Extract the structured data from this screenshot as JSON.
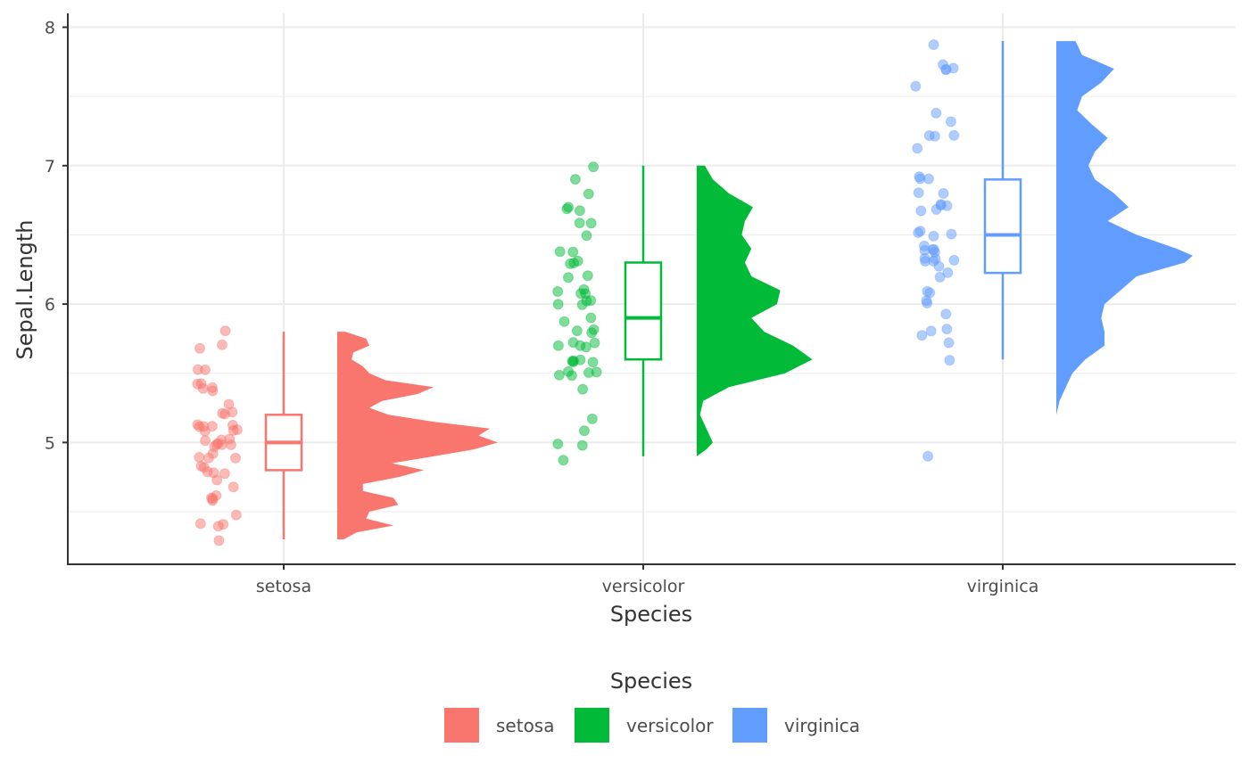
{
  "chart_data": {
    "type": "raincloud",
    "xlabel": "Species",
    "ylabel": "Sepal.Length",
    "categories": [
      "setosa",
      "versicolor",
      "virginica"
    ],
    "y_ticks": [
      "5",
      "6",
      "7",
      "8"
    ],
    "ylim": [
      4.12,
      8.1
    ],
    "grid": true,
    "legend": {
      "title": "Species",
      "position": "bottom",
      "entries": [
        "setosa",
        "versicolor",
        "virginica"
      ]
    },
    "colors": {
      "setosa": "#F8766D",
      "versicolor": "#00BA38",
      "virginica": "#619CFF"
    },
    "series": [
      {
        "name": "setosa",
        "points": [
          5.1,
          4.9,
          4.7,
          4.6,
          5.0,
          5.4,
          4.6,
          5.0,
          4.4,
          4.9,
          5.4,
          4.8,
          4.8,
          4.3,
          5.8,
          5.7,
          5.4,
          5.1,
          5.7,
          5.1,
          5.4,
          5.1,
          4.6,
          5.1,
          4.8,
          5.0,
          5.0,
          5.2,
          5.2,
          4.7,
          4.8,
          5.4,
          5.2,
          5.5,
          4.9,
          5.0,
          5.5,
          4.9,
          4.4,
          5.1,
          5.0,
          4.5,
          4.4,
          5.0,
          5.1,
          4.8,
          5.1,
          4.6,
          5.3,
          5.0
        ],
        "box": {
          "min": 4.3,
          "q1": 4.8,
          "median": 5.0,
          "q3": 5.2,
          "max": 5.8
        },
        "density": [
          [
            4.3,
            0.04
          ],
          [
            4.35,
            0.12
          ],
          [
            4.4,
            0.35
          ],
          [
            4.45,
            0.18
          ],
          [
            4.5,
            0.2
          ],
          [
            4.55,
            0.38
          ],
          [
            4.6,
            0.35
          ],
          [
            4.65,
            0.16
          ],
          [
            4.7,
            0.16
          ],
          [
            4.75,
            0.38
          ],
          [
            4.8,
            0.54
          ],
          [
            4.85,
            0.34
          ],
          [
            4.9,
            0.6
          ],
          [
            4.95,
            0.85
          ],
          [
            5.0,
            1.0
          ],
          [
            5.05,
            0.88
          ],
          [
            5.1,
            0.95
          ],
          [
            5.15,
            0.6
          ],
          [
            5.2,
            0.32
          ],
          [
            5.25,
            0.2
          ],
          [
            5.3,
            0.28
          ],
          [
            5.35,
            0.5
          ],
          [
            5.4,
            0.6
          ],
          [
            5.45,
            0.3
          ],
          [
            5.5,
            0.2
          ],
          [
            5.55,
            0.16
          ],
          [
            5.6,
            0.09
          ],
          [
            5.65,
            0.1
          ],
          [
            5.7,
            0.2
          ],
          [
            5.75,
            0.18
          ],
          [
            5.8,
            0.05
          ]
        ]
      },
      {
        "name": "versicolor",
        "points": [
          7.0,
          6.4,
          6.9,
          5.5,
          6.5,
          5.7,
          6.3,
          4.9,
          6.6,
          5.2,
          5.0,
          5.9,
          6.0,
          6.1,
          5.6,
          6.7,
          5.6,
          5.8,
          6.2,
          5.6,
          5.9,
          6.1,
          6.3,
          6.1,
          6.4,
          6.6,
          6.8,
          6.7,
          6.0,
          5.7,
          5.5,
          5.5,
          5.8,
          6.0,
          5.4,
          6.0,
          6.7,
          6.3,
          5.6,
          5.5,
          5.5,
          6.1,
          5.8,
          5.0,
          5.6,
          5.7,
          5.7,
          6.2,
          5.1,
          5.7
        ],
        "box": {
          "min": 4.9,
          "q1": 5.6,
          "median": 5.9,
          "q3": 6.3,
          "max": 7.0
        },
        "density": [
          [
            4.9,
            0.0
          ],
          [
            4.95,
            0.06
          ],
          [
            5.0,
            0.1
          ],
          [
            5.1,
            0.06
          ],
          [
            5.2,
            0.02
          ],
          [
            5.3,
            0.04
          ],
          [
            5.4,
            0.2
          ],
          [
            5.5,
            0.55
          ],
          [
            5.6,
            0.72
          ],
          [
            5.7,
            0.6
          ],
          [
            5.8,
            0.42
          ],
          [
            5.9,
            0.34
          ],
          [
            6.0,
            0.5
          ],
          [
            6.1,
            0.52
          ],
          [
            6.2,
            0.34
          ],
          [
            6.3,
            0.3
          ],
          [
            6.4,
            0.34
          ],
          [
            6.5,
            0.28
          ],
          [
            6.6,
            0.3
          ],
          [
            6.7,
            0.35
          ],
          [
            6.8,
            0.2
          ],
          [
            6.9,
            0.1
          ],
          [
            7.0,
            0.05
          ]
        ]
      },
      {
        "name": "virginica",
        "points": [
          6.3,
          5.8,
          7.1,
          6.3,
          6.5,
          7.6,
          4.9,
          7.3,
          6.7,
          7.2,
          6.5,
          6.4,
          6.8,
          5.7,
          5.8,
          6.4,
          6.5,
          7.7,
          7.7,
          6.0,
          6.9,
          5.6,
          7.7,
          6.3,
          6.7,
          7.2,
          6.2,
          6.1,
          6.4,
          7.2,
          7.4,
          7.9,
          6.4,
          6.3,
          6.1,
          7.7,
          6.3,
          6.4,
          6.0,
          6.9,
          6.7,
          6.9,
          5.8,
          6.8,
          6.7,
          6.7,
          6.3,
          6.5,
          6.2,
          5.9
        ],
        "box": {
          "min": 5.6,
          "q1": 6.225,
          "median": 6.5,
          "q3": 6.9,
          "max": 7.9
        },
        "density": [
          [
            4.9,
            0.0
          ],
          [
            5.0,
            0.0
          ],
          [
            5.1,
            0.0
          ],
          [
            5.2,
            0.0
          ],
          [
            5.3,
            0.02
          ],
          [
            5.4,
            0.06
          ],
          [
            5.5,
            0.1
          ],
          [
            5.6,
            0.18
          ],
          [
            5.7,
            0.3
          ],
          [
            5.8,
            0.3
          ],
          [
            5.9,
            0.28
          ],
          [
            6.0,
            0.3
          ],
          [
            6.1,
            0.4
          ],
          [
            6.2,
            0.5
          ],
          [
            6.3,
            0.8
          ],
          [
            6.35,
            0.85
          ],
          [
            6.4,
            0.75
          ],
          [
            6.5,
            0.5
          ],
          [
            6.6,
            0.32
          ],
          [
            6.7,
            0.45
          ],
          [
            6.8,
            0.36
          ],
          [
            6.9,
            0.24
          ],
          [
            7.0,
            0.2
          ],
          [
            7.1,
            0.24
          ],
          [
            7.2,
            0.32
          ],
          [
            7.3,
            0.22
          ],
          [
            7.4,
            0.13
          ],
          [
            7.5,
            0.16
          ],
          [
            7.6,
            0.28
          ],
          [
            7.7,
            0.36
          ],
          [
            7.8,
            0.16
          ],
          [
            7.9,
            0.12
          ]
        ]
      }
    ]
  }
}
